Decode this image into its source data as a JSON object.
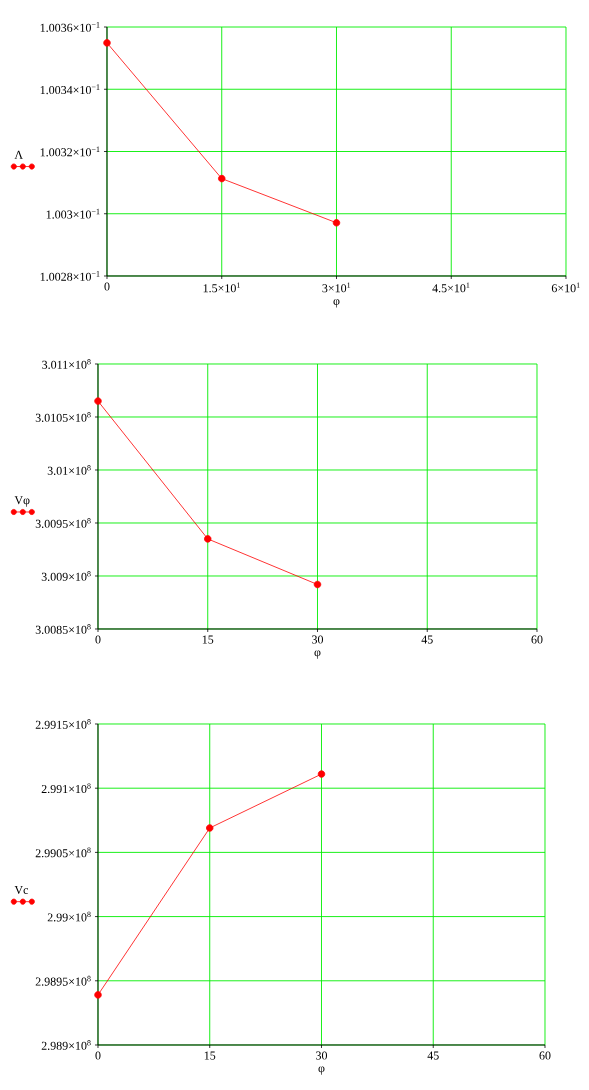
{
  "chart_data": [
    {
      "type": "line",
      "x": [
        0,
        15,
        30
      ],
      "series": [
        {
          "name": "Λ",
          "color": "#ff0000",
          "values": [
            0.1003549,
            0.1003113,
            0.1002971
          ]
        }
      ],
      "xlabel": "φ",
      "xlim": [
        0,
        60
      ],
      "xticks": [
        0,
        {
          "value": 15,
          "label": "1.5×10$^{1}$"
        },
        {
          "value": 30,
          "label": "3×10$^{1}$"
        },
        {
          "value": 45,
          "label": "4.5×10$^{1}$"
        },
        {
          "value": 60,
          "label": "6×10$^{1}$"
        }
      ],
      "ylim": [
        0.10028,
        0.10036
      ],
      "yticks": [
        {
          "value": 0.10028,
          "label": "1.0028×10$^{−1}$"
        },
        {
          "value": 0.1003,
          "label": "1.003×10$^{−1}$"
        },
        {
          "value": 0.10032,
          "label": "1.0032×10$^{−1}$"
        },
        {
          "value": 0.10034,
          "label": "1.0034×10$^{−1}$"
        },
        {
          "value": 0.10036,
          "label": "1.0036×10$^{−1}$"
        }
      ],
      "grid": true,
      "legend": "left",
      "marker": "circle",
      "line_style": "solid"
    },
    {
      "type": "line",
      "x": [
        0,
        15,
        30
      ],
      "series": [
        {
          "name": "Vφ",
          "color": "#ff0000",
          "values": [
            301065000,
            300935000,
            300892000
          ]
        }
      ],
      "xlabel": "φ",
      "xlim": [
        0,
        60
      ],
      "xticks": [
        0,
        15,
        30,
        45,
        60
      ],
      "ylim": [
        300850000,
        301100000
      ],
      "yticks": [
        {
          "value": 300850000,
          "label": "3.0085×10$^{8}$"
        },
        {
          "value": 300900000,
          "label": "3.009×10$^{8}$"
        },
        {
          "value": 300950000,
          "label": "3.0095×10$^{8}$"
        },
        {
          "value": 301000000,
          "label": "3.01×10$^{8}$"
        },
        {
          "value": 301050000,
          "label": "3.0105×10$^{8}$"
        },
        {
          "value": 301100000,
          "label": "3.011×10$^{8}$"
        }
      ],
      "grid": true,
      "legend": "left",
      "marker": "circle",
      "line_style": "solid"
    },
    {
      "type": "line",
      "x": [
        0,
        15,
        30
      ],
      "series": [
        {
          "name": "Vc",
          "color": "#ff0000",
          "values": [
            298939000,
            299069000,
            299111000
          ]
        }
      ],
      "xlabel": "φ",
      "xlim": [
        0,
        60
      ],
      "xticks": [
        0,
        15,
        30,
        45,
        60
      ],
      "ylim": [
        298900000,
        299150000
      ],
      "yticks": [
        {
          "value": 298900000,
          "label": "2.989×10$^{8}$"
        },
        {
          "value": 298950000,
          "label": "2.9895×10$^{8}$"
        },
        {
          "value": 299000000,
          "label": "2.99×10$^{8}$"
        },
        {
          "value": 299050000,
          "label": "2.9905×10$^{8}$"
        },
        {
          "value": 299100000,
          "label": "2.991×10$^{8}$"
        },
        {
          "value": 299150000,
          "label": "2.9915×10$^{8}$"
        }
      ],
      "grid": true,
      "legend": "left",
      "marker": "circle",
      "line_style": "solid"
    }
  ]
}
